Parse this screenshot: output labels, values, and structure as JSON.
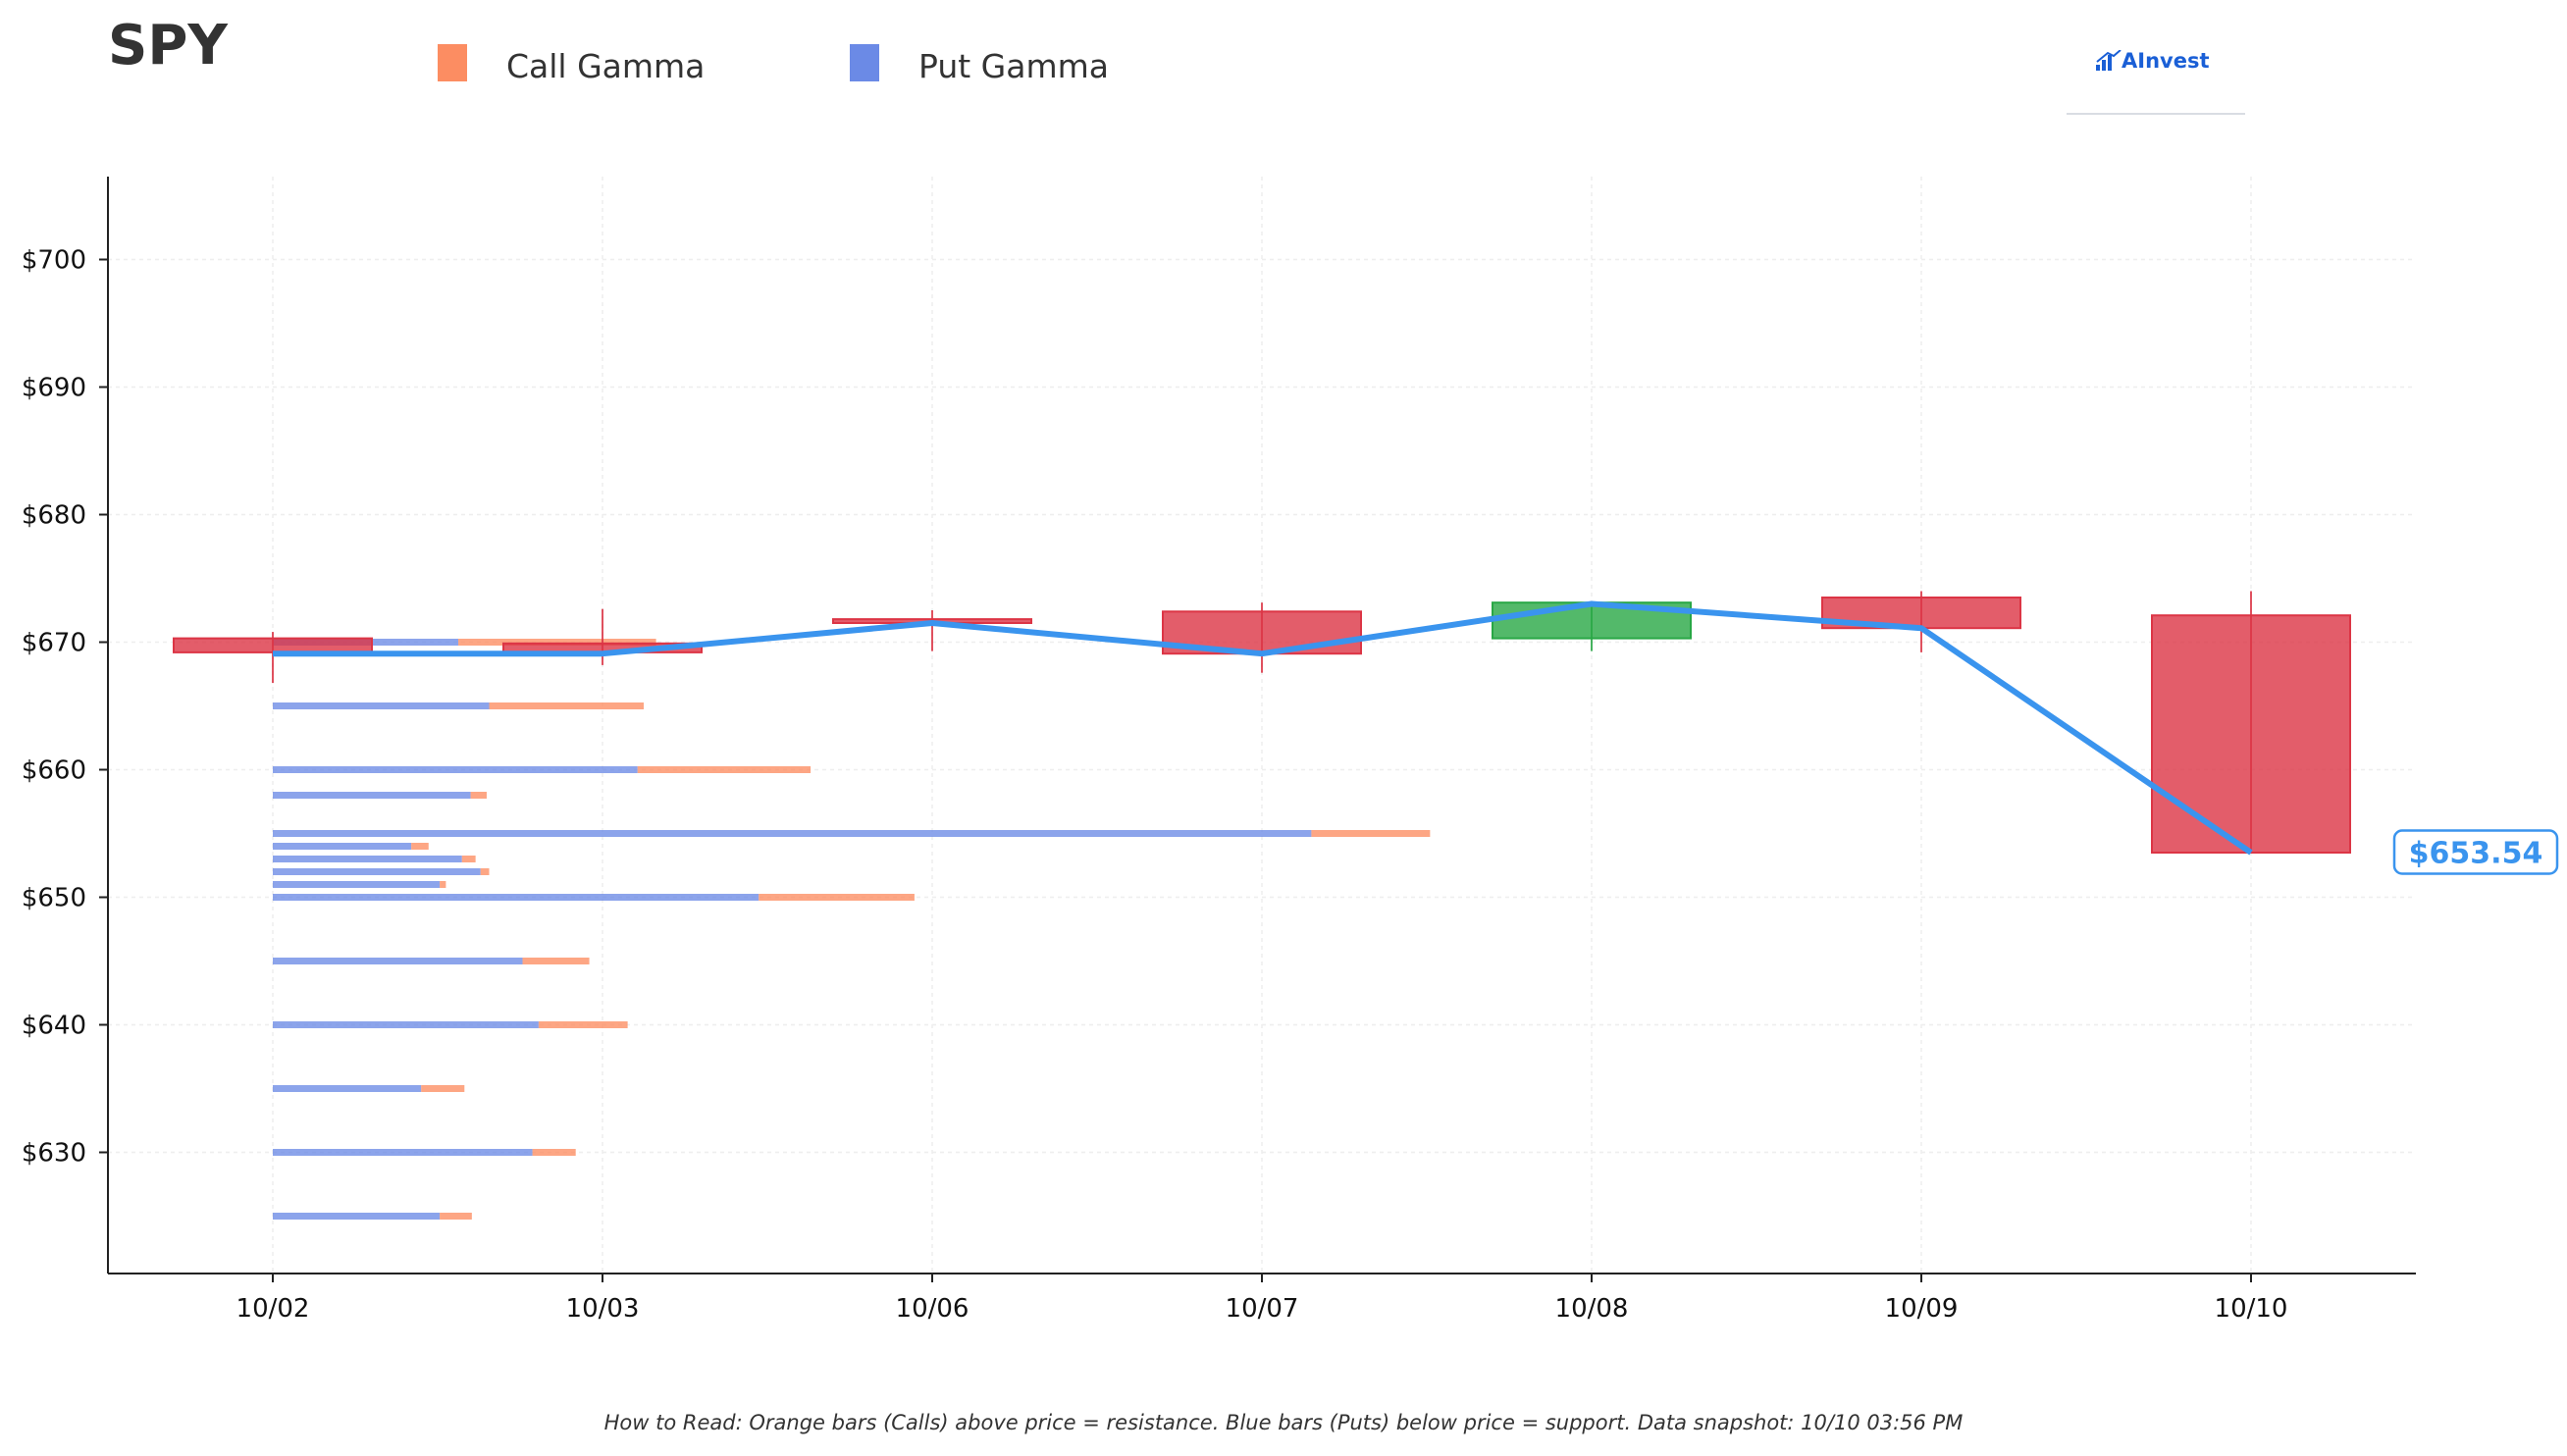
{
  "header": {
    "ticker": "SPY",
    "brand": "AInvest"
  },
  "legend": [
    {
      "label": "Call Gamma",
      "color": "#fc8d62"
    },
    {
      "label": "Put Gamma",
      "color": "#6b8ae6"
    }
  ],
  "footer": {
    "note": "How to Read: Orange bars (Calls) above price = resistance. Blue bars (Puts) below price = support. Data snapshot: 10/10 03:56 PM"
  },
  "colors": {
    "bear": "#dc3545",
    "bull": "#28a745",
    "price_line": "#3a94ee",
    "call": "#fc8d62",
    "put": "#6b8ae6"
  },
  "chart_data": {
    "type": "candlestick",
    "title": "",
    "xlabel": "",
    "ylabel": "",
    "ylim": [
      620.5,
      706.5
    ],
    "grid": true,
    "categories": [
      "10/02",
      "10/03",
      "10/06",
      "10/07",
      "10/08",
      "10/09",
      "10/10"
    ],
    "y_ticks": [
      630,
      640,
      650,
      660,
      670,
      680,
      690,
      700
    ],
    "y_tick_format": "$",
    "candles": [
      {
        "date": "10/02",
        "open": 670.3,
        "high": 670.8,
        "low": 666.8,
        "close": 669.2
      },
      {
        "date": "10/03",
        "open": 669.9,
        "high": 672.6,
        "low": 668.2,
        "close": 669.2
      },
      {
        "date": "10/06",
        "open": 671.8,
        "high": 672.5,
        "low": 669.3,
        "close": 671.5
      },
      {
        "date": "10/07",
        "open": 672.4,
        "high": 673.1,
        "low": 667.6,
        "close": 669.1
      },
      {
        "date": "10/08",
        "open": 670.3,
        "high": 673.1,
        "low": 669.3,
        "close": 673.1
      },
      {
        "date": "10/09",
        "open": 673.5,
        "high": 674.0,
        "low": 669.2,
        "close": 671.1
      },
      {
        "date": "10/10",
        "open": 672.1,
        "high": 674.0,
        "low": 653.5,
        "close": 653.5
      }
    ],
    "price_line": [
      669.1,
      669.1,
      671.5,
      669.1,
      673.0,
      671.1,
      653.5
    ],
    "last_price": 653.54,
    "last_price_label": "$653.54",
    "gamma": [
      {
        "strike": 670,
        "put": 1.5,
        "call": 1.6
      },
      {
        "strike": 665,
        "put": 1.75,
        "call": 1.25
      },
      {
        "strike": 660,
        "put": 2.95,
        "call": 1.4
      },
      {
        "strike": 658,
        "put": 1.6,
        "call": 0.13
      },
      {
        "strike": 655,
        "put": 8.4,
        "call": 0.96
      },
      {
        "strike": 654,
        "put": 1.12,
        "call": 0.14
      },
      {
        "strike": 653,
        "put": 1.53,
        "call": 0.11
      },
      {
        "strike": 652,
        "put": 1.68,
        "call": 0.07
      },
      {
        "strike": 651,
        "put": 1.35,
        "call": 0.05
      },
      {
        "strike": 650,
        "put": 3.93,
        "call": 1.26
      },
      {
        "strike": 645,
        "put": 2.02,
        "call": 0.54
      },
      {
        "strike": 640,
        "put": 2.15,
        "call": 0.72
      },
      {
        "strike": 635,
        "put": 1.2,
        "call": 0.35
      },
      {
        "strike": 630,
        "put": 2.1,
        "call": 0.35
      },
      {
        "strike": 625,
        "put": 1.35,
        "call": 0.26
      }
    ]
  }
}
